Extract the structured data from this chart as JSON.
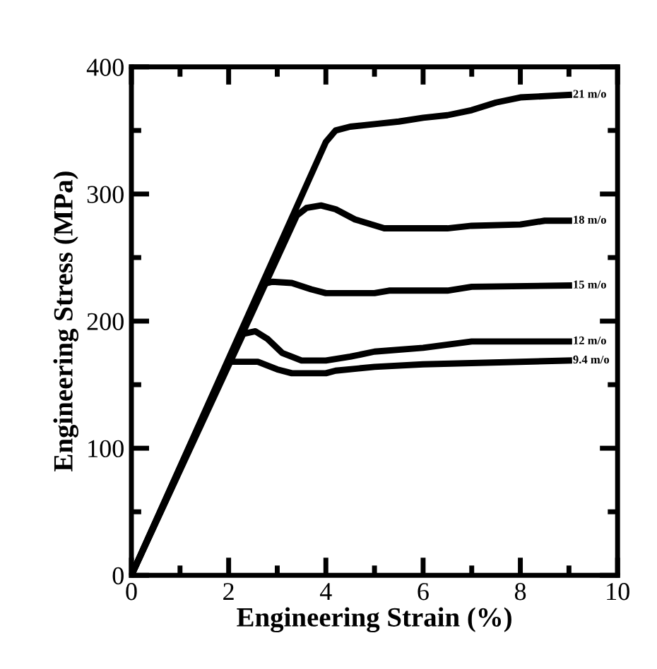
{
  "chart_data": {
    "type": "line",
    "xlabel": "Engineering Strain (%)",
    "ylabel": "Engineering Stress (MPa)",
    "xlim": [
      0,
      10
    ],
    "ylim": [
      0,
      400
    ],
    "xticks": [
      0,
      2,
      4,
      6,
      8,
      10
    ],
    "yticks": [
      0,
      100,
      200,
      300,
      400
    ],
    "grid": false,
    "legend": "right",
    "marker": "none",
    "line_style": "solid",
    "series": [
      {
        "name": "21 m/o",
        "color": "#000000",
        "x": [
          0,
          4.0,
          4.2,
          4.5,
          5.0,
          5.5,
          6.0,
          6.5,
          7.0,
          7.5,
          8.0,
          8.5,
          9.0
        ],
        "values": [
          0,
          341,
          350,
          353,
          355,
          357,
          360,
          362,
          366,
          372,
          376,
          377,
          378
        ]
      },
      {
        "name": "18 m/o",
        "color": "#000000",
        "x": [
          0,
          3.4,
          3.6,
          3.9,
          4.2,
          4.6,
          5.2,
          6.5,
          7.0,
          8.0,
          8.5,
          9.0
        ],
        "values": [
          0,
          283,
          289,
          291,
          288,
          280,
          273,
          273,
          275,
          276,
          279,
          279
        ]
      },
      {
        "name": "15 m/o",
        "color": "#000000",
        "x": [
          0,
          2.7,
          2.9,
          3.3,
          3.7,
          4.0,
          5.0,
          5.3,
          6.5,
          7.0,
          9.0
        ],
        "values": [
          0,
          229,
          231,
          230,
          225,
          222,
          222,
          224,
          224,
          227,
          228
        ]
      },
      {
        "name": "12 m/o",
        "color": "#000000",
        "x": [
          0,
          2.3,
          2.55,
          2.8,
          3.1,
          3.5,
          4.0,
          4.5,
          5.0,
          6.0,
          7.0,
          9.0
        ],
        "values": [
          0,
          190,
          192,
          186,
          175,
          169,
          169,
          172,
          176,
          179,
          184,
          184
        ]
      },
      {
        "name": "9.4 m/o",
        "color": "#000000",
        "x": [
          0,
          2.0,
          2.6,
          3.0,
          3.3,
          4.0,
          4.2,
          5.0,
          6.0,
          7.0,
          9.0
        ],
        "values": [
          0,
          168,
          168,
          162,
          159,
          159,
          161,
          164,
          166,
          167,
          169
        ]
      }
    ]
  }
}
